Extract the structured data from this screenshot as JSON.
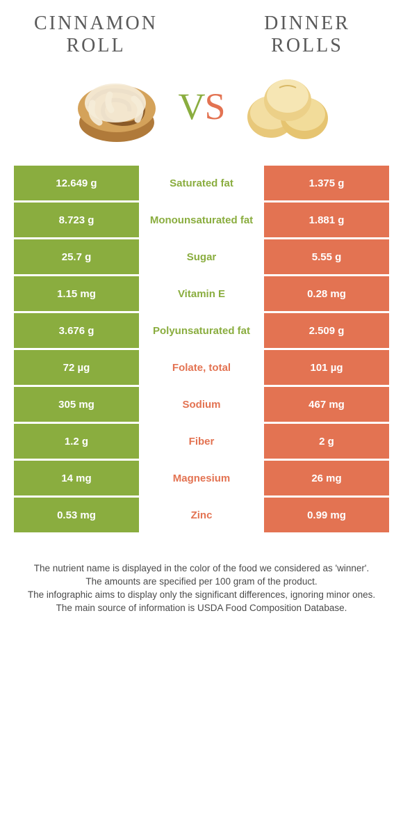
{
  "titles": {
    "left": "CINNAMON\nROLL",
    "right": "DINNER\nROLLS"
  },
  "vs": {
    "v": "V",
    "s": "S"
  },
  "colors": {
    "green": "#8aad3f",
    "orange": "#e37352",
    "text_gray": "#5a5a5a"
  },
  "rows": [
    {
      "left": "12.649 g",
      "label": "Saturated fat",
      "winner": "green",
      "right": "1.375 g"
    },
    {
      "left": "8.723 g",
      "label": "Monounsaturated fat",
      "winner": "green",
      "right": "1.881 g"
    },
    {
      "left": "25.7 g",
      "label": "Sugar",
      "winner": "green",
      "right": "5.55 g"
    },
    {
      "left": "1.15 mg",
      "label": "Vitamin E",
      "winner": "green",
      "right": "0.28 mg"
    },
    {
      "left": "3.676 g",
      "label": "Polyunsaturated fat",
      "winner": "green",
      "right": "2.509 g"
    },
    {
      "left": "72 µg",
      "label": "Folate, total",
      "winner": "orange",
      "right": "101 µg"
    },
    {
      "left": "305 mg",
      "label": "Sodium",
      "winner": "orange",
      "right": "467 mg"
    },
    {
      "left": "1.2 g",
      "label": "Fiber",
      "winner": "orange",
      "right": "2 g"
    },
    {
      "left": "14 mg",
      "label": "Magnesium",
      "winner": "orange",
      "right": "26 mg"
    },
    {
      "left": "0.53 mg",
      "label": "Zinc",
      "winner": "orange",
      "right": "0.99 mg"
    }
  ],
  "footer": {
    "l1": "The nutrient name is displayed in the color of the food we considered as 'winner'.",
    "l2": "The amounts are specified per 100 gram of the product.",
    "l3": "The infographic aims to display only the significant differences, ignoring minor ones.",
    "l4": "The main source of information is USDA Food Composition Database."
  }
}
